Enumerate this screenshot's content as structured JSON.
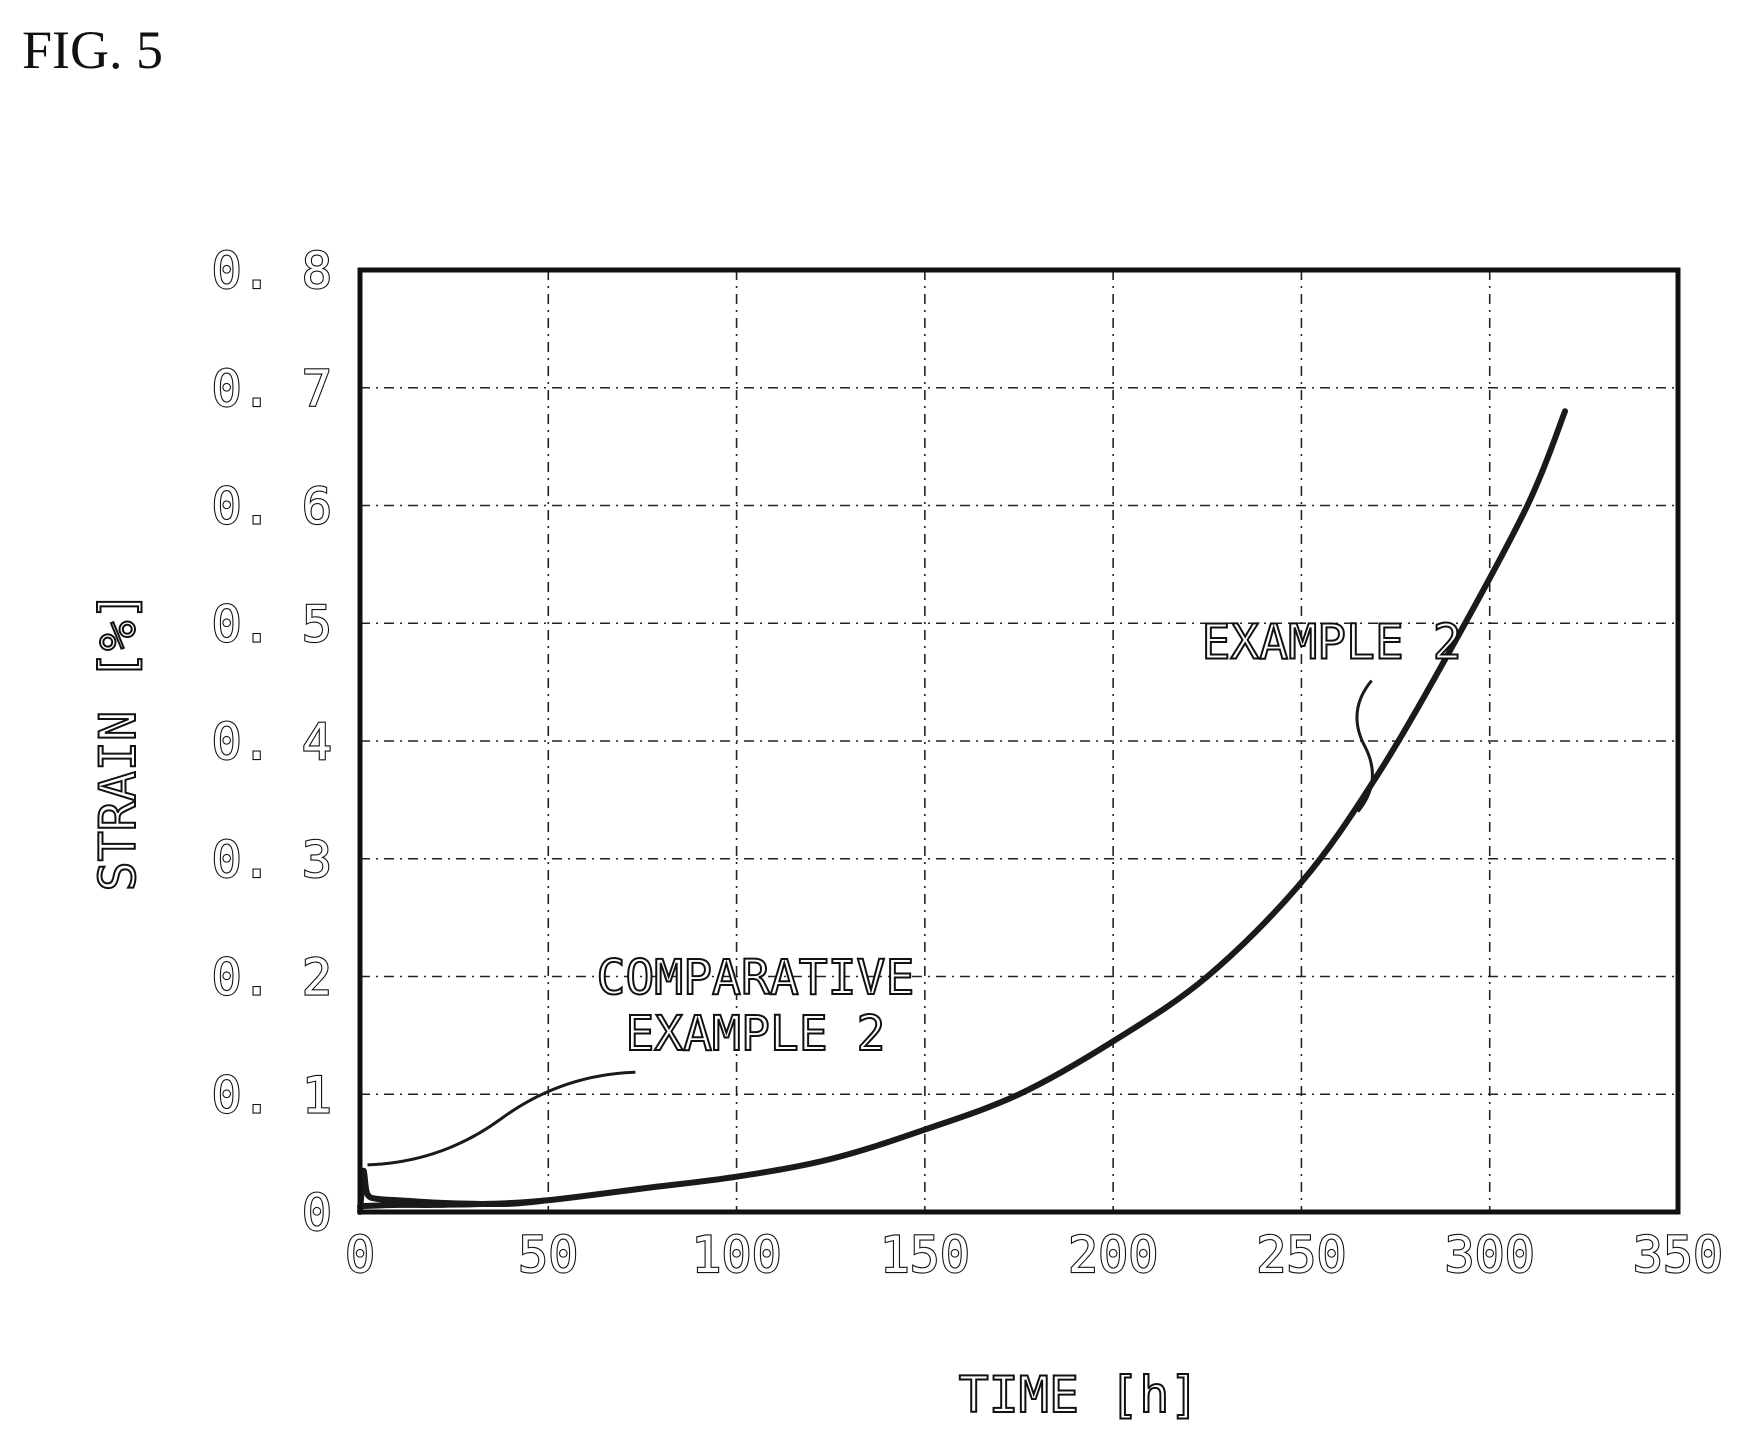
{
  "figure_label": "FIG. 5",
  "chart_data": {
    "type": "line",
    "xlabel": "TIME [h]",
    "ylabel": "STRAIN [%]",
    "xlim": [
      0,
      350
    ],
    "ylim": [
      0,
      0.8
    ],
    "x_ticks": [
      {
        "value": 0,
        "label": "0"
      },
      {
        "value": 50,
        "label": "50"
      },
      {
        "value": 100,
        "label": "100"
      },
      {
        "value": 150,
        "label": "150"
      },
      {
        "value": 200,
        "label": "200"
      },
      {
        "value": 250,
        "label": "250"
      },
      {
        "value": 300,
        "label": "300"
      },
      {
        "value": 350,
        "label": "350"
      }
    ],
    "y_ticks": [
      {
        "value": 0,
        "label": "0"
      },
      {
        "value": 0.1,
        "label": "0. 1"
      },
      {
        "value": 0.2,
        "label": "0. 2"
      },
      {
        "value": 0.3,
        "label": "0. 3"
      },
      {
        "value": 0.4,
        "label": "0. 4"
      },
      {
        "value": 0.5,
        "label": "0. 5"
      },
      {
        "value": 0.6,
        "label": "0. 6"
      },
      {
        "value": 0.7,
        "label": "0. 7"
      },
      {
        "value": 0.8,
        "label": "0. 8"
      }
    ],
    "grid": true,
    "series": [
      {
        "name": "EXAMPLE 2",
        "x": [
          0,
          10,
          20,
          35,
          50,
          75,
          100,
          125,
          150,
          175,
          200,
          225,
          250,
          270,
          290,
          310,
          320
        ],
        "y": [
          0.005,
          0.006,
          0.006,
          0.007,
          0.01,
          0.02,
          0.03,
          0.045,
          0.07,
          0.1,
          0.145,
          0.2,
          0.28,
          0.37,
          0.48,
          0.6,
          0.68
        ]
      },
      {
        "name": "COMPARATIVE EXAMPLE 2",
        "x": [
          0,
          0.5,
          1,
          2,
          5,
          10,
          20,
          30,
          40,
          50
        ],
        "y": [
          0,
          0.02,
          0.035,
          0.015,
          0.011,
          0.01,
          0.008,
          0.007,
          0.007,
          0.01
        ]
      }
    ],
    "annotations": [
      {
        "series": "EXAMPLE 2",
        "lines": [
          "EXAMPLE 2"
        ],
        "text_x": 258,
        "text_y": 0.47,
        "point_x": 265,
        "point_y": 0.34
      },
      {
        "series": "COMPARATIVE EXAMPLE 2",
        "lines": [
          "COMPARATIVE",
          "EXAMPLE 2"
        ],
        "text_x": 105,
        "text_y": 0.185,
        "point_x": 2,
        "point_y": 0.04
      }
    ]
  }
}
